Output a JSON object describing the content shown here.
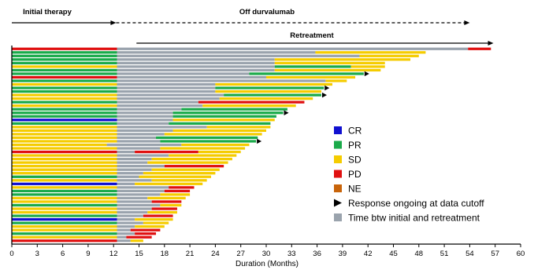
{
  "chart_data": {
    "type": "bar",
    "orientation": "horizontal-swimmer",
    "xlabel": "Duration (Months)",
    "xlim": [
      0,
      60
    ],
    "xticks": [
      0,
      3,
      6,
      9,
      12,
      15,
      18,
      21,
      24,
      27,
      30,
      33,
      36,
      39,
      42,
      45,
      48,
      51,
      54,
      57,
      60
    ],
    "grid": false,
    "legend_position": "center-right",
    "colors": {
      "CR": "#1010d0",
      "PR": "#1aaa4a",
      "SD": "#f5cc00",
      "PD": "#e01010",
      "NE": "#c8640a",
      "gap": "#9aa3ad",
      "arrow": "#000000"
    },
    "legend": [
      {
        "key": "CR",
        "label": "CR"
      },
      {
        "key": "PR",
        "label": "PR"
      },
      {
        "key": "SD",
        "label": "SD"
      },
      {
        "key": "PD",
        "label": "PD"
      },
      {
        "key": "NE",
        "label": "NE"
      },
      {
        "key": "arrow",
        "label": "Response ongoing at data cutoff"
      },
      {
        "key": "gap",
        "label": "Time btw initial and retreatment"
      }
    ],
    "annotations": [
      {
        "label": "Initial therapy",
        "from": 0,
        "to": 12.3,
        "style": "solid"
      },
      {
        "label": "Off durvalumab",
        "from": 12.3,
        "to": 54,
        "style": "dashed"
      },
      {
        "label": "Retreatment",
        "from": 14.7,
        "to": 56.8,
        "style": "solid"
      }
    ],
    "patients": [
      {
        "initial": [
          [
            "PD",
            0,
            12.4
          ]
        ],
        "gap": [
          12.4,
          53.8
        ],
        "retreat": [
          [
            "PD",
            53.8,
            56.5
          ]
        ],
        "ongoing": false
      },
      {
        "initial": [
          [
            "PR",
            0,
            12.4
          ]
        ],
        "gap": [
          12.4,
          35.8
        ],
        "retreat": [
          [
            "SD",
            35.8,
            48.8
          ]
        ],
        "ongoing": false
      },
      {
        "initial": [
          [
            "PR",
            0,
            12.4
          ]
        ],
        "gap": [
          12.4,
          41.0
        ],
        "retreat": [
          [
            "SD",
            41.0,
            48.0
          ]
        ],
        "ongoing": false
      },
      {
        "initial": [
          [
            "PR",
            0,
            12.4
          ]
        ],
        "gap": [
          12.4,
          31.0
        ],
        "retreat": [
          [
            "SD",
            31.0,
            47.0
          ]
        ],
        "ongoing": false
      },
      {
        "initial": [
          [
            "PR",
            0,
            12.4
          ]
        ],
        "gap": [
          12.4,
          31.0
        ],
        "retreat": [
          [
            "SD",
            31.0,
            44.0
          ]
        ],
        "ongoing": false
      },
      {
        "initial": [
          [
            "SD",
            0,
            12.4
          ]
        ],
        "gap": [
          12.4,
          31.0
        ],
        "retreat": [
          [
            "PR",
            31.0,
            40.0
          ],
          [
            "SD",
            40.0,
            44.0
          ]
        ],
        "ongoing": false
      },
      {
        "initial": [
          [
            "PR",
            0,
            12.4
          ]
        ],
        "gap": [
          12.4,
          31.0
        ],
        "retreat": [
          [
            "SD",
            31.0,
            43.5
          ]
        ],
        "ongoing": false
      },
      {
        "initial": [
          [
            "PR",
            0,
            12.4
          ]
        ],
        "gap": [
          12.4,
          28.0
        ],
        "retreat": [
          [
            "PR",
            28.0,
            41.5
          ]
        ],
        "ongoing": true
      },
      {
        "initial": [
          [
            "PD",
            0,
            12.4
          ]
        ],
        "gap": [
          12.4,
          30.0
        ],
        "retreat": [
          [
            "SD",
            30.0,
            40.5
          ]
        ],
        "ongoing": false
      },
      {
        "initial": [
          [
            "PR",
            0,
            12.4
          ]
        ],
        "gap": [
          12.4,
          37.0
        ],
        "retreat": [
          [
            "SD",
            37.0,
            39.5
          ]
        ],
        "ongoing": false
      },
      {
        "initial": [
          [
            "SD",
            0,
            12.4
          ]
        ],
        "gap": [
          12.4,
          24.0
        ],
        "retreat": [
          [
            "SD",
            24.0,
            37.8
          ]
        ],
        "ongoing": false
      },
      {
        "initial": [
          [
            "PR",
            0,
            12.4
          ]
        ],
        "gap": [
          12.4,
          24.0
        ],
        "retreat": [
          [
            "PR",
            24.0,
            36.8
          ]
        ],
        "ongoing": true
      },
      {
        "initial": [
          [
            "PR",
            0,
            12.4
          ]
        ],
        "gap": [
          12.4,
          24.0
        ],
        "retreat": [
          [
            "SD",
            24.0,
            36.5
          ]
        ],
        "ongoing": false
      },
      {
        "initial": [
          [
            "SD",
            0,
            12.4
          ]
        ],
        "gap": [
          12.4,
          25.0
        ],
        "retreat": [
          [
            "PR",
            25.0,
            36.5
          ]
        ],
        "ongoing": true
      },
      {
        "initial": [
          [
            "SD",
            0,
            12.4
          ]
        ],
        "gap": [
          12.4,
          24.5
        ],
        "retreat": [
          [
            "SD",
            24.5,
            35.5
          ]
        ],
        "ongoing": false
      },
      {
        "initial": [
          [
            "PR",
            0,
            12.4
          ]
        ],
        "gap": [
          12.4,
          22.0
        ],
        "retreat": [
          [
            "PD",
            22.0,
            34.5
          ]
        ],
        "ongoing": false
      },
      {
        "initial": [
          [
            "SD",
            0,
            12.4
          ]
        ],
        "gap": [
          12.4,
          22.5
        ],
        "retreat": [
          [
            "SD",
            22.5,
            33.5
          ]
        ],
        "ongoing": false
      },
      {
        "initial": [
          [
            "PR",
            0,
            12.4
          ]
        ],
        "gap": [
          12.4,
          20.0
        ],
        "retreat": [
          [
            "PR",
            20.0,
            32.5
          ]
        ],
        "ongoing": false
      },
      {
        "initial": [
          [
            "PR",
            0,
            12.4
          ]
        ],
        "gap": [
          12.4,
          19.0
        ],
        "retreat": [
          [
            "PR",
            19.0,
            32.0
          ]
        ],
        "ongoing": true
      },
      {
        "initial": [
          [
            "PR",
            0,
            12.4
          ]
        ],
        "gap": [
          12.4,
          19.0
        ],
        "retreat": [
          [
            "PR",
            19.0,
            31.2
          ]
        ],
        "ongoing": false
      },
      {
        "initial": [
          [
            "CR",
            0,
            12.4
          ]
        ],
        "gap": [
          12.4,
          19.0
        ],
        "retreat": [
          [
            "SD",
            19.0,
            31.0
          ]
        ],
        "ongoing": false
      },
      {
        "initial": [
          [
            "PR",
            0,
            12.4
          ]
        ],
        "gap": [
          12.4,
          18.5
        ],
        "retreat": [
          [
            "PR",
            18.5,
            30.5
          ]
        ],
        "ongoing": false
      },
      {
        "initial": [
          [
            "SD",
            0,
            12.4
          ]
        ],
        "gap": [
          12.4,
          23.0
        ],
        "retreat": [
          [
            "SD",
            23.0,
            30.5
          ]
        ],
        "ongoing": false
      },
      {
        "initial": [
          [
            "SD",
            0,
            12.4
          ]
        ],
        "gap": [
          12.4,
          19.0
        ],
        "retreat": [
          [
            "SD",
            19.0,
            30.0
          ]
        ],
        "ongoing": false
      },
      {
        "initial": [
          [
            "SD",
            0,
            12.4
          ]
        ],
        "gap": [
          12.4,
          18.0
        ],
        "retreat": [
          [
            "SD",
            18.0,
            29.5
          ]
        ],
        "ongoing": false
      },
      {
        "initial": [
          [
            "SD",
            0,
            12.4
          ]
        ],
        "gap": [
          12.4,
          17.0
        ],
        "retreat": [
          [
            "PR",
            17.0,
            29.0
          ]
        ],
        "ongoing": false
      },
      {
        "initial": [
          [
            "SD",
            0,
            12.4
          ]
        ],
        "gap": [
          12.4,
          17.5
        ],
        "retreat": [
          [
            "PR",
            17.5,
            28.8
          ]
        ],
        "ongoing": true
      },
      {
        "initial": [
          [
            "SD",
            0,
            11.2
          ]
        ],
        "gap": [
          11.2,
          20.0
        ],
        "retreat": [
          [
            "SD",
            20.0,
            28.0
          ]
        ],
        "ongoing": false
      },
      {
        "initial": [
          [
            "SD",
            0,
            12.4
          ]
        ],
        "gap": [
          12.4,
          17.5
        ],
        "retreat": [
          [
            "SD",
            17.5,
            27.5
          ]
        ],
        "ongoing": false
      },
      {
        "initial": [
          [
            "PD",
            0,
            12.4
          ]
        ],
        "gap": [
          12.4,
          14.5
        ],
        "retreat": [
          [
            "PD",
            14.5,
            22.0
          ],
          [
            "SD",
            22.0,
            27.0
          ]
        ],
        "ongoing": false
      },
      {
        "initial": [
          [
            "SD",
            0,
            12.4
          ]
        ],
        "gap": [
          12.4,
          18.5
        ],
        "retreat": [
          [
            "SD",
            18.5,
            26.5
          ]
        ],
        "ongoing": false
      },
      {
        "initial": [
          [
            "SD",
            0,
            12.4
          ]
        ],
        "gap": [
          12.4,
          16.5
        ],
        "retreat": [
          [
            "SD",
            16.5,
            26.0
          ]
        ],
        "ongoing": false
      },
      {
        "initial": [
          [
            "SD",
            0,
            12.4
          ]
        ],
        "gap": [
          12.4,
          16.0
        ],
        "retreat": [
          [
            "SD",
            16.0,
            25.5
          ]
        ],
        "ongoing": false
      },
      {
        "initial": [
          [
            "SD",
            0,
            12.4
          ]
        ],
        "gap": [
          12.4,
          18.0
        ],
        "retreat": [
          [
            "PD",
            18.0,
            25.0
          ]
        ],
        "ongoing": false
      },
      {
        "initial": [
          [
            "SD",
            0,
            12.4
          ]
        ],
        "gap": [
          12.4,
          16.5
        ],
        "retreat": [
          [
            "SD",
            16.5,
            24.5
          ]
        ],
        "ongoing": false
      },
      {
        "initial": [
          [
            "SD",
            0,
            12.4
          ]
        ],
        "gap": [
          12.4,
          15.5
        ],
        "retreat": [
          [
            "SD",
            15.5,
            24.0
          ]
        ],
        "ongoing": false
      },
      {
        "initial": [
          [
            "PR",
            0,
            12.4
          ]
        ],
        "gap": [
          12.4,
          15.0
        ],
        "retreat": [
          [
            "SD",
            15.0,
            23.5
          ]
        ],
        "ongoing": false
      },
      {
        "initial": [
          [
            "SD",
            0,
            12.4
          ]
        ],
        "gap": [
          12.4,
          16.5
        ],
        "retreat": [
          [
            "SD",
            16.5,
            23.0
          ]
        ],
        "ongoing": false
      },
      {
        "initial": [
          [
            "CR",
            0,
            12.4
          ]
        ],
        "gap": [
          12.4,
          14.5
        ],
        "retreat": [
          [
            "SD",
            14.5,
            22.5
          ]
        ],
        "ongoing": false
      },
      {
        "initial": [
          [
            "SD",
            0,
            12.4
          ]
        ],
        "gap": [
          12.4,
          18.5
        ],
        "retreat": [
          [
            "PD",
            18.5,
            21.5
          ]
        ],
        "ongoing": false
      },
      {
        "initial": [
          [
            "PR",
            0,
            12.4
          ]
        ],
        "gap": [
          12.4,
          18.0
        ],
        "retreat": [
          [
            "PD",
            18.0,
            21.0
          ]
        ],
        "ongoing": false
      },
      {
        "initial": [
          [
            "PR",
            0,
            12.4
          ]
        ],
        "gap": [
          12.4,
          17.5
        ],
        "retreat": [
          [
            "SD",
            17.5,
            21.0
          ]
        ],
        "ongoing": false
      },
      {
        "initial": [
          [
            "SD",
            0,
            12.4
          ]
        ],
        "gap": [
          12.4,
          16.0
        ],
        "retreat": [
          [
            "SD",
            16.0,
            20.5
          ]
        ],
        "ongoing": false
      },
      {
        "initial": [
          [
            "SD",
            0,
            12.4
          ]
        ],
        "gap": [
          12.4,
          16.5
        ],
        "retreat": [
          [
            "PD",
            16.5,
            20.0
          ]
        ],
        "ongoing": false
      },
      {
        "initial": [
          [
            "PR",
            0,
            12.4
          ]
        ],
        "gap": [
          12.4,
          17.5
        ],
        "retreat": [
          [
            "SD",
            17.5,
            20.0
          ]
        ],
        "ongoing": false
      },
      {
        "initial": [
          [
            "SD",
            0,
            12.4
          ]
        ],
        "gap": [
          12.4,
          16.5
        ],
        "retreat": [
          [
            "PD",
            16.5,
            19.5
          ]
        ],
        "ongoing": false
      },
      {
        "initial": [
          [
            "SD",
            0,
            12.4
          ]
        ],
        "gap": [
          12.4,
          16.0
        ],
        "retreat": [
          [
            "SD",
            16.0,
            19.5
          ]
        ],
        "ongoing": false
      },
      {
        "initial": [
          [
            "PR",
            0,
            12.4
          ]
        ],
        "gap": [
          12.4,
          15.5
        ],
        "retreat": [
          [
            "PD",
            15.5,
            19.0
          ]
        ],
        "ongoing": false
      },
      {
        "initial": [
          [
            "CR",
            0,
            12.4
          ]
        ],
        "gap": [
          12.4,
          14.5
        ],
        "retreat": [
          [
            "SD",
            14.5,
            19.0
          ]
        ],
        "ongoing": false
      },
      {
        "initial": [
          [
            "PR",
            0,
            12.4
          ]
        ],
        "gap": [
          12.4,
          15.5
        ],
        "retreat": [
          [
            "SD",
            15.5,
            18.5
          ]
        ],
        "ongoing": false
      },
      {
        "initial": [
          [
            "SD",
            0,
            12.4
          ]
        ],
        "gap": [
          12.4,
          14.5
        ],
        "retreat": [
          [
            "SD",
            14.5,
            18.0
          ]
        ],
        "ongoing": false
      },
      {
        "initial": [
          [
            "SD",
            0,
            12.4
          ]
        ],
        "gap": [
          12.4,
          14.0
        ],
        "retreat": [
          [
            "PD",
            14.0,
            17.5
          ]
        ],
        "ongoing": false
      },
      {
        "initial": [
          [
            "PR",
            0,
            12.4
          ]
        ],
        "gap": [
          12.4,
          14.5
        ],
        "retreat": [
          [
            "PD",
            14.5,
            17.0
          ]
        ],
        "ongoing": false
      },
      {
        "initial": [
          [
            "SD",
            0,
            12.4
          ]
        ],
        "gap": [
          12.4,
          13.5
        ],
        "retreat": [
          [
            "PD",
            13.5,
            16.5
          ]
        ],
        "ongoing": false
      },
      {
        "initial": [
          [
            "PD",
            0,
            12.4
          ]
        ],
        "gap": [
          12.4,
          14.0
        ],
        "retreat": [
          [
            "SD",
            14.0,
            15.5
          ]
        ],
        "ongoing": false
      }
    ]
  }
}
